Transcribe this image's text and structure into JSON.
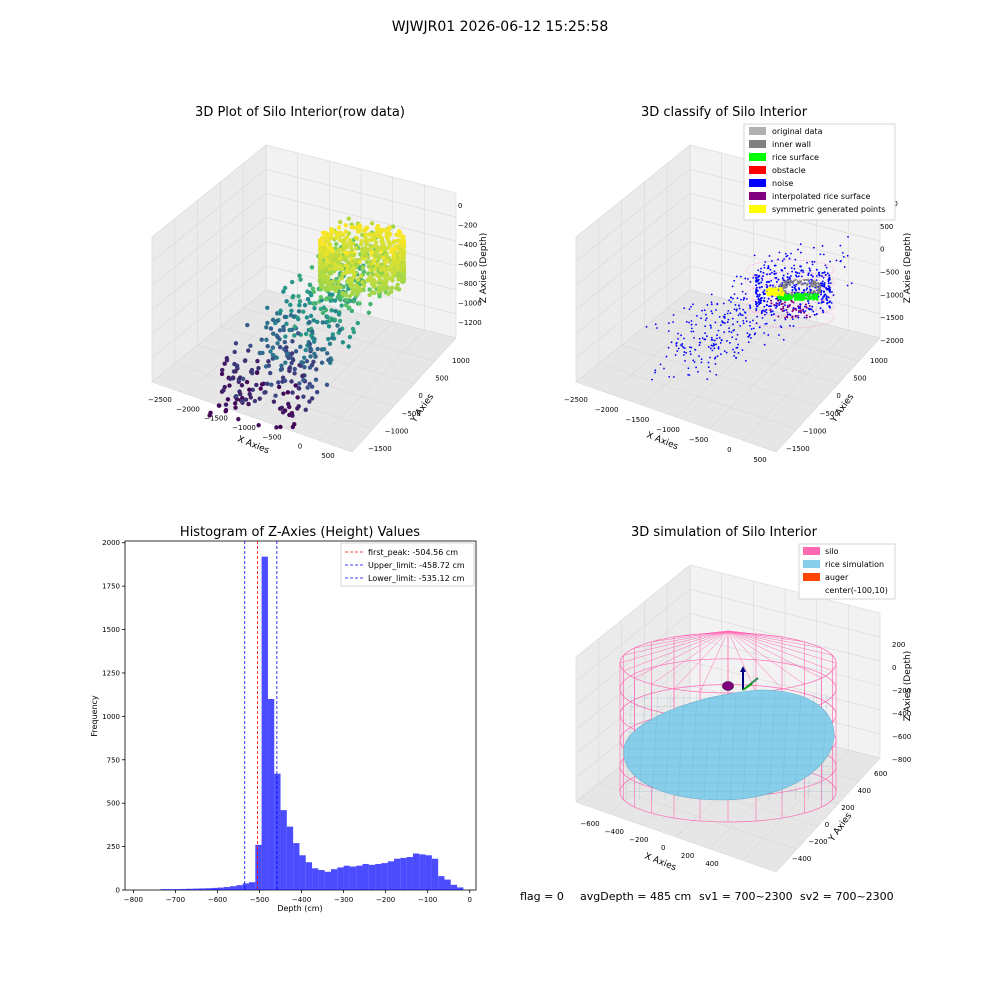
{
  "figure_title": "WJWJR01 2026-06-12 15:25:58",
  "status_line": {
    "flag": "flag = 0",
    "avg": "avgDepth = 485 cm",
    "sv1": "sv1 = 700~2300",
    "sv2": "sv2 = 700~2300"
  },
  "chart_data": [
    {
      "type": "scatter",
      "projection": "3d",
      "title": "3D Plot of Silo Interior(row data)",
      "xlabel": "X Axies",
      "ylabel": "Y Axies",
      "zlabel": "Z Axies (Depth)",
      "x_ticks": [
        "−2500",
        "−2000",
        "−1500",
        "−1000",
        "−500",
        "0",
        "500"
      ],
      "y_ticks": [
        "−1500",
        "−1000",
        "−500",
        "0",
        "500",
        "1000"
      ],
      "z_ticks": [
        "0",
        "−200",
        "−400",
        "−600",
        "−800",
        "−1000",
        "−1200"
      ],
      "xlim": [
        -2700,
        600
      ],
      "ylim": [
        -1600,
        1200
      ],
      "zlim": [
        -1300,
        0
      ],
      "colormap": "viridis"
    },
    {
      "type": "scatter",
      "projection": "3d",
      "title": "3D classify of Silo Interior",
      "xlabel": "X Axies",
      "ylabel": "Y Axies",
      "zlabel": "Z Axies (Depth)",
      "x_ticks": [
        "−2500",
        "−2000",
        "−1500",
        "−1000",
        "−500",
        "0",
        "500"
      ],
      "y_ticks": [
        "−1500",
        "−1000",
        "−500",
        "0",
        "500",
        "1000"
      ],
      "z_ticks": [
        "1000",
        "500",
        "0",
        "−500",
        "−1000",
        "−1500",
        "−2000"
      ],
      "xlim": [
        -2700,
        600
      ],
      "ylim": [
        -1600,
        1200
      ],
      "zlim": [
        -2000,
        1000
      ],
      "legend": [
        {
          "label": "original data",
          "color": "#b0b0b0"
        },
        {
          "label": "inner wall",
          "color": "#808080"
        },
        {
          "label": "rice surface",
          "color": "#00ff00"
        },
        {
          "label": "obstacle",
          "color": "#ff0000"
        },
        {
          "label": "noise",
          "color": "#0000ff"
        },
        {
          "label": "interpolated rice surface",
          "color": "#800080"
        },
        {
          "label": "symmetric generated points",
          "color": "#ffff00"
        }
      ],
      "legend_position": "top-right"
    },
    {
      "type": "bar",
      "title": "Histogram of Z-Axies (Height) Values",
      "xlabel": "Depth (cm)",
      "ylabel": "Frequency",
      "xlim": [
        -820,
        15
      ],
      "ylim": [
        0,
        2010
      ],
      "x_ticks": [
        "−800",
        "−700",
        "−600",
        "−500",
        "−400",
        "−300",
        "−200",
        "−100",
        "0"
      ],
      "y_ticks": [
        "0",
        "250",
        "500",
        "750",
        "1000",
        "1250",
        "1500",
        "1750",
        "2000"
      ],
      "bar_color": "#0000ff",
      "bin_width": 15,
      "bins": [
        [
          -735,
          5
        ],
        [
          -720,
          5
        ],
        [
          -705,
          5
        ],
        [
          -690,
          6
        ],
        [
          -675,
          7
        ],
        [
          -660,
          8
        ],
        [
          -645,
          9
        ],
        [
          -630,
          10
        ],
        [
          -615,
          12
        ],
        [
          -600,
          14
        ],
        [
          -585,
          17
        ],
        [
          -570,
          22
        ],
        [
          -555,
          28
        ],
        [
          -540,
          38
        ],
        [
          -525,
          45
        ],
        [
          -510,
          260
        ],
        [
          -495,
          1920
        ],
        [
          -480,
          1100
        ],
        [
          -465,
          670
        ],
        [
          -450,
          460
        ],
        [
          -435,
          365
        ],
        [
          -420,
          270
        ],
        [
          -405,
          200
        ],
        [
          -390,
          160
        ],
        [
          -375,
          125
        ],
        [
          -360,
          115
        ],
        [
          -345,
          105
        ],
        [
          -330,
          120
        ],
        [
          -315,
          130
        ],
        [
          -300,
          140
        ],
        [
          -285,
          135
        ],
        [
          -270,
          140
        ],
        [
          -255,
          150
        ],
        [
          -240,
          145
        ],
        [
          -225,
          150
        ],
        [
          -210,
          155
        ],
        [
          -195,
          165
        ],
        [
          -180,
          180
        ],
        [
          -165,
          185
        ],
        [
          -150,
          190
        ],
        [
          -135,
          210
        ],
        [
          -120,
          205
        ],
        [
          -105,
          200
        ],
        [
          -90,
          180
        ],
        [
          -75,
          80
        ],
        [
          -60,
          60
        ],
        [
          -45,
          30
        ],
        [
          -30,
          15
        ]
      ],
      "lines": [
        {
          "label": "first_peak: -504.56 cm",
          "x": -504.56,
          "color": "#ff0000"
        },
        {
          "label": "Upper_limit: -458.72 cm",
          "x": -458.72,
          "color": "#0000ff"
        },
        {
          "label": "Lower_limit: -535.12 cm",
          "x": -535.12,
          "color": "#0000ff"
        }
      ],
      "legend_position": "top-right"
    },
    {
      "type": "surface",
      "projection": "3d",
      "title": "3D simulation of Silo Interior",
      "xlabel": "X Axies",
      "ylabel": "Y Axies",
      "zlabel": "Z Axies (Depth)",
      "x_ticks": [
        "−600",
        "−400",
        "−200",
        "0",
        "200",
        "400"
      ],
      "y_ticks": [
        "−400",
        "−200",
        "0",
        "200",
        "400",
        "600"
      ],
      "z_ticks": [
        "200",
        "0",
        "−200",
        "−400",
        "−600",
        "−800"
      ],
      "xlim": [
        -700,
        500
      ],
      "ylim": [
        -500,
        650
      ],
      "zlim": [
        -850,
        300
      ],
      "legend": [
        {
          "label": "silo",
          "color": "#ff69b4"
        },
        {
          "label": "rice simulation",
          "color": "#87ceeb"
        },
        {
          "label": "auger",
          "color": "#ff4500"
        },
        {
          "label": "center(-100,10)",
          "color": ""
        }
      ],
      "legend_position": "top-right"
    }
  ]
}
